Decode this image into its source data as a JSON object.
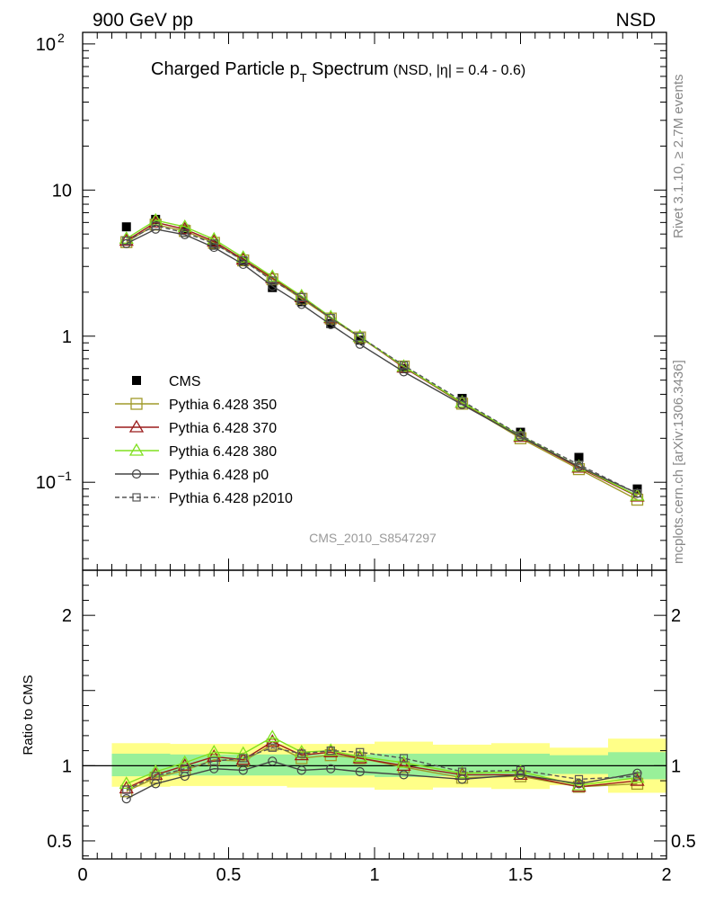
{
  "header": {
    "left": "900 GeV pp",
    "right": "NSD"
  },
  "side_labels": {
    "rivet": "Rivet 3.1.10, ≥ 2.7M events",
    "mcplots": "mcplots.cern.ch [arXiv:1306.3436]"
  },
  "colors": {
    "cms": "#000000",
    "p350": "#a09a2a",
    "p370": "#9b1c1c",
    "p380": "#80e020",
    "p0": "#444444",
    "p2010": "#555555",
    "band_inner": "#99f099",
    "band_outer": "#ffff88"
  },
  "chart_data": [
    {
      "type": "line",
      "panel": "main",
      "title": "Charged Particle p",
      "title_sub": "T",
      "title_rest": " Spectrum",
      "title_note": "(NSD, |η| = 0.4 - 0.6)",
      "watermark": "CMS_2010_S8547297",
      "yscale": "log",
      "xlim": [
        0,
        2
      ],
      "ylim": [
        0.025,
        120
      ],
      "ytick_labels": [
        "10^-1",
        "1",
        "10",
        "10^2"
      ],
      "x": [
        0.15,
        0.25,
        0.35,
        0.45,
        0.55,
        0.65,
        0.75,
        0.85,
        0.95,
        1.1,
        1.3,
        1.5,
        1.7,
        1.9
      ],
      "series": [
        {
          "name": "CMS",
          "key": "cms",
          "marker": "filled-square",
          "line": false,
          "values": [
            5.6,
            6.3,
            5.4,
            4.2,
            3.25,
            2.15,
            1.72,
            1.22,
            0.94,
            0.6,
            0.375,
            0.22,
            0.148,
            0.09
          ]
        },
        {
          "name": "Pythia 6.428 350",
          "key": "p350",
          "marker": "open-square",
          "line": "solid",
          "values": [
            4.4,
            5.8,
            5.25,
            4.35,
            3.3,
            2.45,
            1.8,
            1.32,
            0.98,
            0.62,
            0.345,
            0.2,
            0.123,
            0.076
          ]
        },
        {
          "name": "Pythia 6.428 370",
          "key": "p370",
          "marker": "open-triangle",
          "line": "solid",
          "values": [
            4.5,
            6.0,
            5.4,
            4.45,
            3.35,
            2.5,
            1.85,
            1.33,
            0.99,
            0.61,
            0.35,
            0.205,
            0.126,
            0.08
          ]
        },
        {
          "name": "Pythia 6.428 380",
          "key": "p380",
          "marker": "open-triangle",
          "line": "solid",
          "values": [
            4.65,
            6.2,
            5.6,
            4.6,
            3.45,
            2.55,
            1.88,
            1.35,
            0.99,
            0.62,
            0.352,
            0.208,
            0.128,
            0.081
          ]
        },
        {
          "name": "Pythia 6.428 p0",
          "key": "p0",
          "marker": "open-circle",
          "line": "solid",
          "values": [
            4.3,
            5.4,
            4.95,
            4.05,
            3.1,
            2.2,
            1.65,
            1.2,
            0.88,
            0.57,
            0.34,
            0.205,
            0.128,
            0.084
          ]
        },
        {
          "name": "Pythia 6.428 p2010",
          "key": "p2010",
          "marker": "open-square-small",
          "line": "dashed",
          "values": [
            4.5,
            5.7,
            5.1,
            4.3,
            3.3,
            2.4,
            1.85,
            1.33,
            0.99,
            0.63,
            0.36,
            0.21,
            0.132,
            0.084
          ]
        }
      ]
    },
    {
      "type": "line",
      "panel": "ratio",
      "ylabel": "Ratio to CMS",
      "xlim": [
        0,
        2
      ],
      "ylim": [
        0.38,
        2.3
      ],
      "yticks": [
        0.5,
        1,
        2
      ],
      "ytick_labels": [
        "0.5",
        "1",
        "2"
      ],
      "xticks": [
        0,
        0.5,
        1,
        1.5,
        2
      ],
      "xtick_labels": [
        "0",
        "0.5",
        "1",
        "1.5",
        "2"
      ],
      "x": [
        0.15,
        0.25,
        0.35,
        0.45,
        0.55,
        0.65,
        0.75,
        0.85,
        0.95,
        1.1,
        1.3,
        1.5,
        1.7,
        1.9
      ],
      "bins": [
        [
          0.1,
          0.2
        ],
        [
          0.2,
          0.3
        ],
        [
          0.3,
          0.4
        ],
        [
          0.4,
          0.5
        ],
        [
          0.5,
          0.6
        ],
        [
          0.6,
          0.7
        ],
        [
          0.7,
          0.8
        ],
        [
          0.8,
          0.9
        ],
        [
          0.9,
          1.0
        ],
        [
          1.0,
          1.2
        ],
        [
          1.2,
          1.4
        ],
        [
          1.4,
          1.6
        ],
        [
          1.6,
          1.8
        ],
        [
          1.8,
          2.0
        ]
      ],
      "band_inner": [
        [
          0.93,
          1.08
        ],
        [
          0.93,
          1.08
        ],
        [
          0.935,
          1.075
        ],
        [
          0.935,
          1.075
        ],
        [
          0.935,
          1.075
        ],
        [
          0.935,
          1.075
        ],
        [
          0.935,
          1.075
        ],
        [
          0.935,
          1.075
        ],
        [
          0.935,
          1.075
        ],
        [
          0.925,
          1.08
        ],
        [
          0.93,
          1.08
        ],
        [
          0.93,
          1.08
        ],
        [
          0.945,
          1.07
        ],
        [
          0.91,
          1.09
        ]
      ],
      "band_outer": [
        [
          0.86,
          1.15
        ],
        [
          0.86,
          1.15
        ],
        [
          0.865,
          1.145
        ],
        [
          0.865,
          1.145
        ],
        [
          0.865,
          1.145
        ],
        [
          0.865,
          1.145
        ],
        [
          0.855,
          1.145
        ],
        [
          0.855,
          1.145
        ],
        [
          0.855,
          1.145
        ],
        [
          0.84,
          1.16
        ],
        [
          0.855,
          1.14
        ],
        [
          0.845,
          1.15
        ],
        [
          0.87,
          1.12
        ],
        [
          0.82,
          1.18
        ]
      ],
      "series": [
        {
          "name": "Pythia 6.428 350",
          "key": "p350",
          "marker": "open-square",
          "line": "solid",
          "values": [
            0.83,
            0.92,
            0.97,
            1.04,
            1.03,
            1.14,
            1.05,
            1.07,
            1.05,
            0.99,
            0.92,
            0.93,
            0.86,
            0.88
          ]
        },
        {
          "name": "Pythia 6.428 370",
          "key": "p370",
          "marker": "open-triangle",
          "line": "solid",
          "values": [
            0.85,
            0.94,
            1.0,
            1.06,
            1.04,
            1.16,
            1.07,
            1.09,
            1.05,
            1.0,
            0.94,
            0.94,
            0.86,
            0.9
          ]
        },
        {
          "name": "Pythia 6.428 380",
          "key": "p380",
          "marker": "open-triangle",
          "line": "solid",
          "values": [
            0.88,
            0.96,
            1.02,
            1.09,
            1.08,
            1.19,
            1.09,
            1.1,
            1.06,
            1.02,
            0.95,
            0.96,
            0.87,
            0.92
          ]
        },
        {
          "name": "Pythia 6.428 p0",
          "key": "p0",
          "marker": "open-circle",
          "line": "solid",
          "values": [
            0.78,
            0.88,
            0.93,
            0.98,
            0.97,
            1.03,
            0.97,
            0.98,
            0.96,
            0.94,
            0.91,
            0.94,
            0.88,
            0.95
          ]
        },
        {
          "name": "Pythia 6.428 p2010",
          "key": "p2010",
          "marker": "open-square-small",
          "line": "dashed",
          "values": [
            0.84,
            0.93,
            0.98,
            1.03,
            1.05,
            1.12,
            1.08,
            1.1,
            1.09,
            1.05,
            0.96,
            0.97,
            0.91,
            0.93
          ]
        }
      ]
    }
  ]
}
